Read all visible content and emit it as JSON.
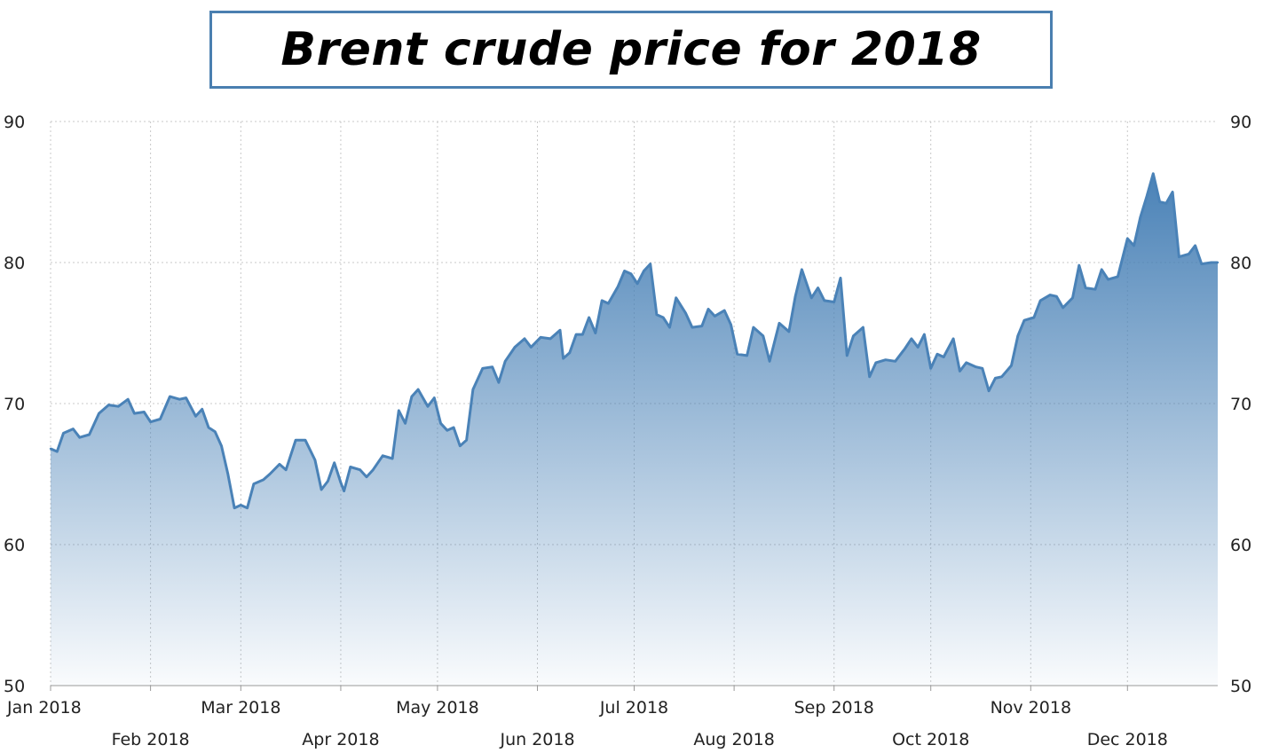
{
  "chart_data": {
    "type": "area",
    "title": "Brent crude price for 2018",
    "xlabel": "",
    "ylabel": "",
    "ylim": [
      50,
      90
    ],
    "yticks": [
      50,
      60,
      70,
      80,
      90
    ],
    "xlim": [
      "2018-01-01",
      "2018-12-29"
    ],
    "grid": true,
    "line_color": "#4a82b7",
    "fill_color": "#4a82b7",
    "x_ticks": [
      {
        "label": "Jan 2018",
        "date": "2018-01-01",
        "row": 1
      },
      {
        "label": "Feb 2018",
        "date": "2018-02-01",
        "row": 2
      },
      {
        "label": "Mar 2018",
        "date": "2018-03-01",
        "row": 1
      },
      {
        "label": "Apr 2018",
        "date": "2018-04-01",
        "row": 2
      },
      {
        "label": "May 2018",
        "date": "2018-05-01",
        "row": 1
      },
      {
        "label": "Jun 2018",
        "date": "2018-06-01",
        "row": 2
      },
      {
        "label": "Jul 2018",
        "date": "2018-07-01",
        "row": 1
      },
      {
        "label": "Aug 2018",
        "date": "2018-08-01",
        "row": 2
      },
      {
        "label": "Sep 2018",
        "date": "2018-09-01",
        "row": 1
      },
      {
        "label": "Oct 2018",
        "date": "2018-10-01",
        "row": 2
      },
      {
        "label": "Nov 2018",
        "date": "2018-11-01",
        "row": 1
      },
      {
        "label": "Dec 2018",
        "date": "2018-12-01",
        "row": 2
      }
    ],
    "series": [
      {
        "points": [
          [
            "2018-01-01",
            66.8
          ],
          [
            "2018-01-03",
            66.6
          ],
          [
            "2018-01-05",
            67.9
          ],
          [
            "2018-01-08",
            68.2
          ],
          [
            "2018-01-10",
            67.6
          ],
          [
            "2018-01-13",
            67.8
          ],
          [
            "2018-01-16",
            69.3
          ],
          [
            "2018-01-19",
            69.9
          ],
          [
            "2018-01-22",
            69.8
          ],
          [
            "2018-01-25",
            70.3
          ],
          [
            "2018-01-27",
            69.3
          ],
          [
            "2018-01-30",
            69.4
          ],
          [
            "2018-02-01",
            68.7
          ],
          [
            "2018-02-04",
            68.9
          ],
          [
            "2018-02-07",
            70.5
          ],
          [
            "2018-02-10",
            70.3
          ],
          [
            "2018-02-12",
            70.4
          ],
          [
            "2018-02-15",
            69.1
          ],
          [
            "2018-02-17",
            69.6
          ],
          [
            "2018-02-19",
            68.3
          ],
          [
            "2018-02-21",
            68.0
          ],
          [
            "2018-02-23",
            67.0
          ],
          [
            "2018-02-25",
            65.0
          ],
          [
            "2018-02-27",
            62.6
          ],
          [
            "2018-03-01",
            62.8
          ],
          [
            "2018-03-03",
            62.6
          ],
          [
            "2018-03-05",
            64.3
          ],
          [
            "2018-03-08",
            64.6
          ],
          [
            "2018-03-10",
            65.0
          ],
          [
            "2018-03-13",
            65.7
          ],
          [
            "2018-03-15",
            65.3
          ],
          [
            "2018-03-18",
            67.4
          ],
          [
            "2018-03-21",
            67.4
          ],
          [
            "2018-03-24",
            66.0
          ],
          [
            "2018-03-26",
            63.9
          ],
          [
            "2018-03-28",
            64.5
          ],
          [
            "2018-03-30",
            65.8
          ],
          [
            "2018-04-01",
            64.4
          ],
          [
            "2018-04-02",
            63.8
          ],
          [
            "2018-04-04",
            65.5
          ],
          [
            "2018-04-07",
            65.3
          ],
          [
            "2018-04-09",
            64.8
          ],
          [
            "2018-04-11",
            65.3
          ],
          [
            "2018-04-14",
            66.3
          ],
          [
            "2018-04-17",
            66.1
          ],
          [
            "2018-04-19",
            69.5
          ],
          [
            "2018-04-21",
            68.6
          ],
          [
            "2018-04-23",
            70.5
          ],
          [
            "2018-04-25",
            71.0
          ],
          [
            "2018-04-28",
            69.8
          ],
          [
            "2018-04-30",
            70.4
          ],
          [
            "2018-05-02",
            68.6
          ],
          [
            "2018-05-04",
            68.1
          ],
          [
            "2018-05-06",
            68.3
          ],
          [
            "2018-05-08",
            67.0
          ],
          [
            "2018-05-10",
            67.4
          ],
          [
            "2018-05-12",
            71.0
          ],
          [
            "2018-05-15",
            72.5
          ],
          [
            "2018-05-18",
            72.6
          ],
          [
            "2018-05-20",
            71.5
          ],
          [
            "2018-05-22",
            73.0
          ],
          [
            "2018-05-25",
            74.0
          ],
          [
            "2018-05-28",
            74.6
          ],
          [
            "2018-05-30",
            74.0
          ],
          [
            "2018-06-02",
            74.7
          ],
          [
            "2018-06-05",
            74.6
          ],
          [
            "2018-06-08",
            75.2
          ],
          [
            "2018-06-09",
            73.2
          ],
          [
            "2018-06-11",
            73.6
          ],
          [
            "2018-06-13",
            74.9
          ],
          [
            "2018-06-15",
            74.9
          ],
          [
            "2018-06-17",
            76.1
          ],
          [
            "2018-06-19",
            75.0
          ],
          [
            "2018-06-21",
            77.3
          ],
          [
            "2018-06-23",
            77.1
          ],
          [
            "2018-06-26",
            78.3
          ],
          [
            "2018-06-28",
            79.4
          ],
          [
            "2018-06-30",
            79.2
          ],
          [
            "2018-07-02",
            78.5
          ],
          [
            "2018-07-04",
            79.4
          ],
          [
            "2018-07-06",
            79.9
          ],
          [
            "2018-07-08",
            76.3
          ],
          [
            "2018-07-10",
            76.1
          ],
          [
            "2018-07-12",
            75.4
          ],
          [
            "2018-07-14",
            77.5
          ],
          [
            "2018-07-17",
            76.4
          ],
          [
            "2018-07-19",
            75.4
          ],
          [
            "2018-07-22",
            75.5
          ],
          [
            "2018-07-24",
            76.7
          ],
          [
            "2018-07-26",
            76.2
          ],
          [
            "2018-07-29",
            76.6
          ],
          [
            "2018-07-31",
            75.6
          ],
          [
            "2018-08-02",
            73.5
          ],
          [
            "2018-08-05",
            73.4
          ],
          [
            "2018-08-07",
            75.4
          ],
          [
            "2018-08-10",
            74.8
          ],
          [
            "2018-08-12",
            73.0
          ],
          [
            "2018-08-15",
            75.7
          ],
          [
            "2018-08-18",
            75.1
          ],
          [
            "2018-08-20",
            77.6
          ],
          [
            "2018-08-22",
            79.5
          ],
          [
            "2018-08-25",
            77.5
          ],
          [
            "2018-08-27",
            78.2
          ],
          [
            "2018-08-29",
            77.3
          ],
          [
            "2018-09-01",
            77.2
          ],
          [
            "2018-09-03",
            78.9
          ],
          [
            "2018-09-05",
            73.4
          ],
          [
            "2018-09-07",
            74.8
          ],
          [
            "2018-09-10",
            75.4
          ],
          [
            "2018-09-12",
            71.9
          ],
          [
            "2018-09-14",
            72.9
          ],
          [
            "2018-09-17",
            73.1
          ],
          [
            "2018-09-20",
            73.0
          ],
          [
            "2018-09-23",
            73.9
          ],
          [
            "2018-09-25",
            74.6
          ],
          [
            "2018-09-27",
            74.0
          ],
          [
            "2018-09-29",
            74.9
          ],
          [
            "2018-10-01",
            72.5
          ],
          [
            "2018-10-03",
            73.5
          ],
          [
            "2018-10-05",
            73.3
          ],
          [
            "2018-10-08",
            74.6
          ],
          [
            "2018-10-10",
            72.3
          ],
          [
            "2018-10-12",
            72.9
          ],
          [
            "2018-10-15",
            72.6
          ],
          [
            "2018-10-17",
            72.5
          ],
          [
            "2018-10-19",
            70.9
          ],
          [
            "2018-10-21",
            71.8
          ],
          [
            "2018-10-23",
            71.9
          ],
          [
            "2018-10-26",
            72.7
          ],
          [
            "2018-10-28",
            74.8
          ],
          [
            "2018-10-30",
            75.9
          ],
          [
            "2018-11-02",
            76.1
          ],
          [
            "2018-11-04",
            77.3
          ],
          [
            "2018-11-07",
            77.7
          ],
          [
            "2018-11-09",
            77.6
          ],
          [
            "2018-11-11",
            76.8
          ],
          [
            "2018-11-14",
            77.5
          ],
          [
            "2018-11-16",
            79.8
          ],
          [
            "2018-11-18",
            78.2
          ],
          [
            "2018-11-21",
            78.1
          ],
          [
            "2018-11-23",
            79.5
          ],
          [
            "2018-11-25",
            78.8
          ],
          [
            "2018-11-28",
            79.0
          ],
          [
            "2018-12-01",
            81.7
          ],
          [
            "2018-12-03",
            81.2
          ],
          [
            "2018-12-05",
            83.2
          ],
          [
            "2018-12-07",
            84.7
          ],
          [
            "2018-12-09",
            86.3
          ],
          [
            "2018-12-11",
            84.3
          ],
          [
            "2018-12-13",
            84.2
          ],
          [
            "2018-12-15",
            85.0
          ],
          [
            "2018-12-17",
            80.4
          ],
          [
            "2018-12-20",
            80.6
          ],
          [
            "2018-12-22",
            81.2
          ],
          [
            "2018-12-24",
            79.9
          ],
          [
            "2018-12-27",
            80.0
          ],
          [
            "2018-12-29",
            80.0
          ]
        ]
      }
    ]
  }
}
